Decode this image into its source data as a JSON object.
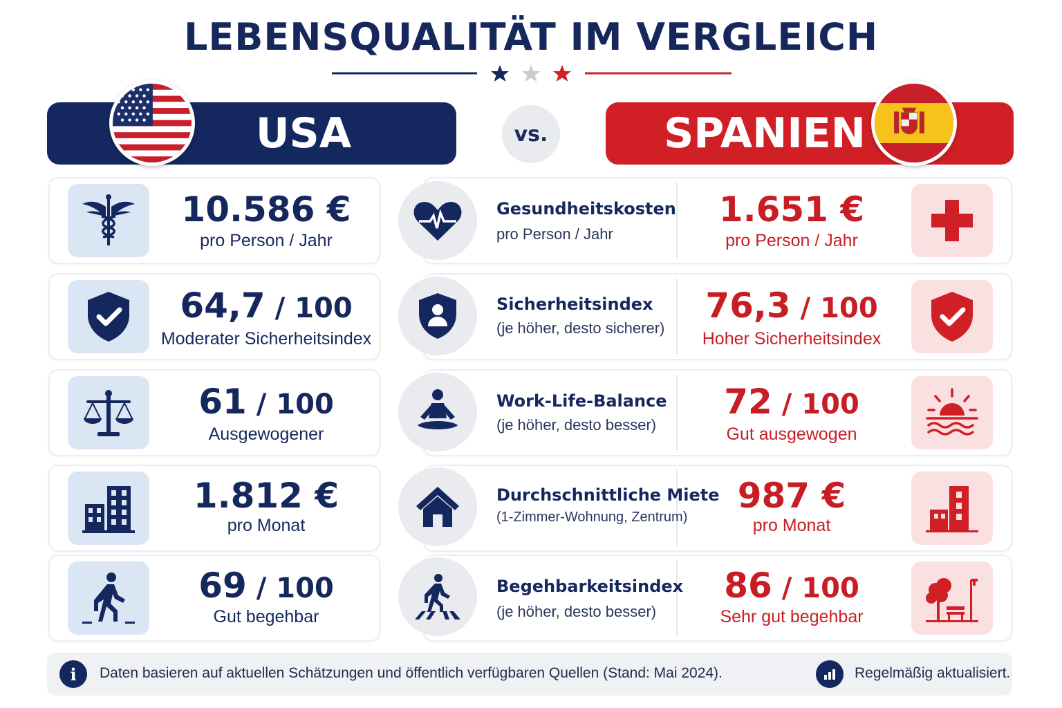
{
  "title": "LEBENSQUALITÄT IM VERGLEICH",
  "colors": {
    "navy": "#14285f",
    "red": "#d11f26",
    "light_blue": "#dbe6f5",
    "light_red": "#fbe0e1"
  },
  "left_country": {
    "name": "USA",
    "flag_icon": "usa-flag-icon"
  },
  "vs_label": "vs.",
  "right_country": {
    "name": "SPANIEN",
    "flag_icon": "spain-flag-icon"
  },
  "rows": [
    {
      "category": "Gesundheitskosten",
      "category_sub": "pro Person / Jahr",
      "category_icon": "heartbeat-icon",
      "usa": {
        "value": "10.586 €",
        "suffix": "",
        "sub": "pro Person / Jahr",
        "icon": "caduceus-icon"
      },
      "esp": {
        "value": "1.651 €",
        "suffix": "",
        "sub": "pro Person / Jahr",
        "icon": "medical-cross-icon"
      }
    },
    {
      "category": "Sicherheitsindex",
      "category_sub": "(je höher, desto sicherer)",
      "category_icon": "shield-person-icon",
      "usa": {
        "value": "64,7",
        "suffix": " / 100",
        "sub": "Moderater Sicherheitsindex",
        "icon": "shield-check-icon"
      },
      "esp": {
        "value": "76,3",
        "suffix": " / 100",
        "sub": "Hoher Sicherheitsindex",
        "icon": "shield-check-icon"
      }
    },
    {
      "category": "Work-Life-Balance",
      "category_sub": "(je höher, desto besser)",
      "category_icon": "meditation-icon",
      "usa": {
        "value": "61",
        "suffix": " / 100",
        "sub": "Ausgewogener",
        "icon": "scales-icon"
      },
      "esp": {
        "value": "72",
        "suffix": " / 100",
        "sub": "Gut ausgewogen",
        "icon": "sun-sea-icon"
      }
    },
    {
      "category": "Durchschnittliche Miete",
      "category_sub": "(1-Zimmer-Wohnung, Zentrum)",
      "category_icon": "house-icon",
      "usa": {
        "value": "1.812 €",
        "suffix": "",
        "sub": "pro Monat",
        "icon": "buildings-icon"
      },
      "esp": {
        "value": "987 €",
        "suffix": "",
        "sub": "pro Monat",
        "icon": "buildings-icon"
      }
    },
    {
      "category": "Begehbarkeitsindex",
      "category_sub": "(je höher, desto besser)",
      "category_icon": "crosswalk-icon",
      "usa": {
        "value": "69",
        "suffix": " / 100",
        "sub": "Gut begehbar",
        "icon": "walking-person-icon"
      },
      "esp": {
        "value": "86",
        "suffix": " / 100",
        "sub": "Sehr gut begehbar",
        "icon": "park-bench-icon"
      }
    }
  ],
  "footer": {
    "info_icon": "i",
    "note": "Daten basieren auf aktuellen Schätzungen und öffentlich verfügbaren Quellen (Stand: Mai 2024).",
    "update_icon": "bar-chart-icon",
    "update_label": "Regelmäßig aktualisiert."
  }
}
